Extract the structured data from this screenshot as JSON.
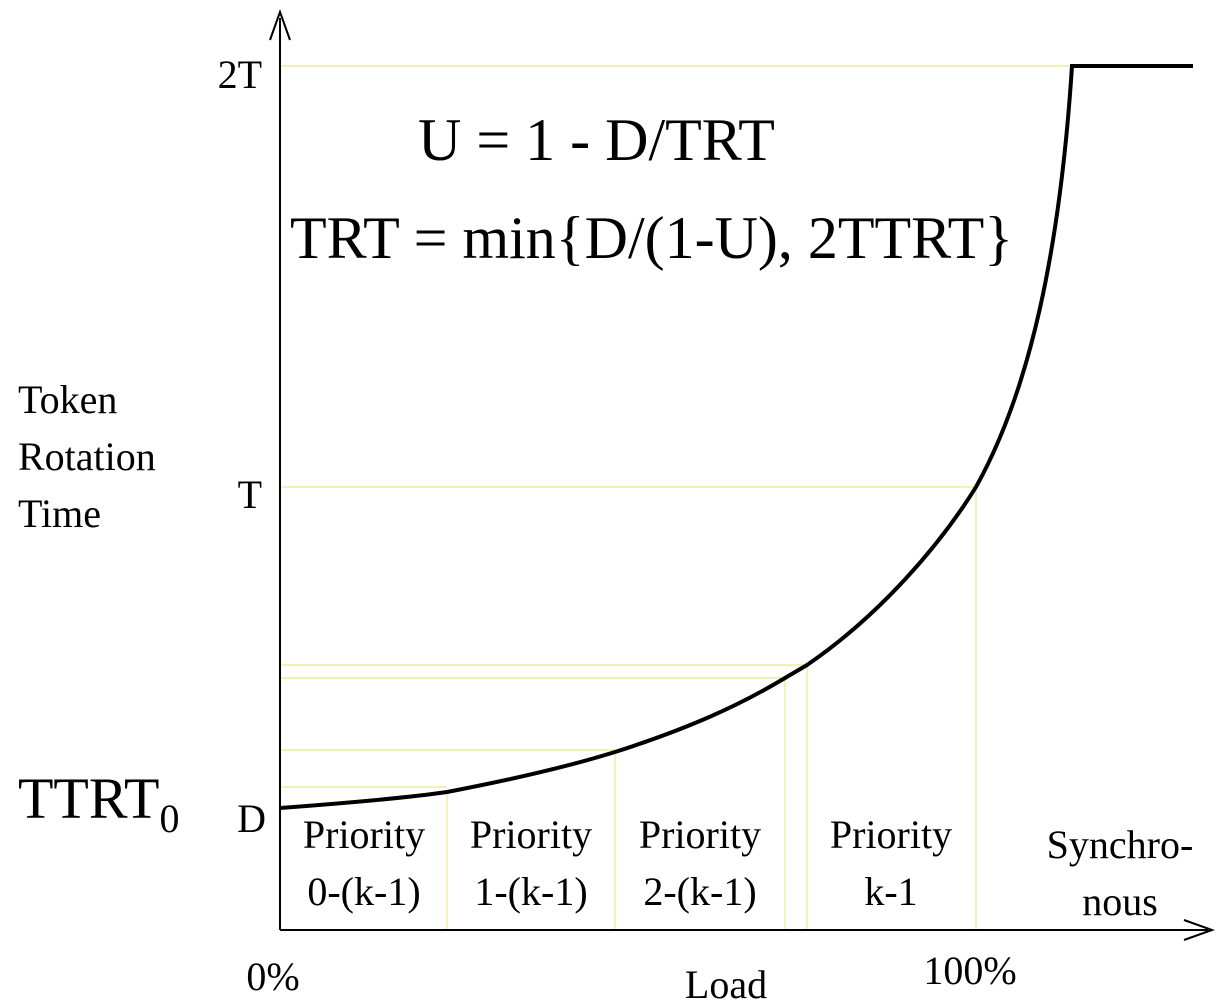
{
  "y_axis": {
    "label": [
      "Token",
      "Rotation",
      "Time"
    ],
    "ticks": [
      "2T",
      "T",
      "D"
    ]
  },
  "ttrt": {
    "text": "TTRT",
    "subscript": "0"
  },
  "formulas": [
    "U = 1 - D/TRT",
    "TRT = min{D/(1-U), 2TTRT}"
  ],
  "regions": [
    {
      "lines": [
        "Priority",
        "0-(k-1)"
      ]
    },
    {
      "lines": [
        "Priority",
        "1-(k-1)"
      ]
    },
    {
      "lines": [
        "Priority",
        "2-(k-1)"
      ]
    },
    {
      "lines": [
        "Priority",
        "k-1"
      ]
    },
    {
      "lines": [
        "Synchro-",
        "nous"
      ]
    }
  ],
  "x_axis": {
    "label": "Load",
    "ticks": [
      "0%",
      "100%"
    ]
  }
}
